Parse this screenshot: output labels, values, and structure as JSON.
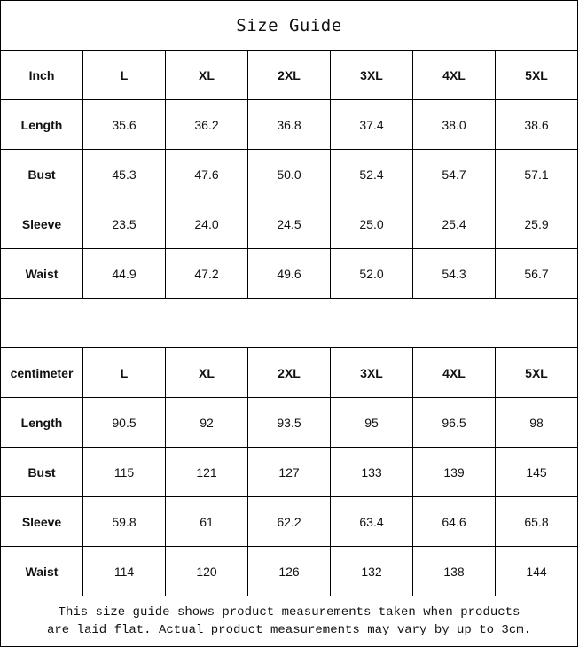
{
  "title": "Size Guide",
  "sizes": [
    "L",
    "XL",
    "2XL",
    "3XL",
    "4XL",
    "5XL"
  ],
  "tables": [
    {
      "unit": "Inch",
      "rows": [
        {
          "label": "Length",
          "values": [
            "35.6",
            "36.2",
            "36.8",
            "37.4",
            "38.0",
            "38.6"
          ]
        },
        {
          "label": "Bust",
          "values": [
            "45.3",
            "47.6",
            "50.0",
            "52.4",
            "54.7",
            "57.1"
          ]
        },
        {
          "label": "Sleeve",
          "values": [
            "23.5",
            "24.0",
            "24.5",
            "25.0",
            "25.4",
            "25.9"
          ]
        },
        {
          "label": "Waist",
          "values": [
            "44.9",
            "47.2",
            "49.6",
            "52.0",
            "54.3",
            "56.7"
          ]
        }
      ]
    },
    {
      "unit": "centimeter",
      "rows": [
        {
          "label": "Length",
          "values": [
            "90.5",
            "92",
            "93.5",
            "95",
            "96.5",
            "98"
          ]
        },
        {
          "label": "Bust",
          "values": [
            "115",
            "121",
            "127",
            "133",
            "139",
            "145"
          ]
        },
        {
          "label": "Sleeve",
          "values": [
            "59.8",
            "61",
            "62.2",
            "63.4",
            "64.6",
            "65.8"
          ]
        },
        {
          "label": "Waist",
          "values": [
            "114",
            "120",
            "126",
            "132",
            "138",
            "144"
          ]
        }
      ]
    }
  ],
  "note_line1": "This size guide shows product measurements taken when products",
  "note_line2": "are laid flat. Actual product measurements may vary by up to 3cm."
}
